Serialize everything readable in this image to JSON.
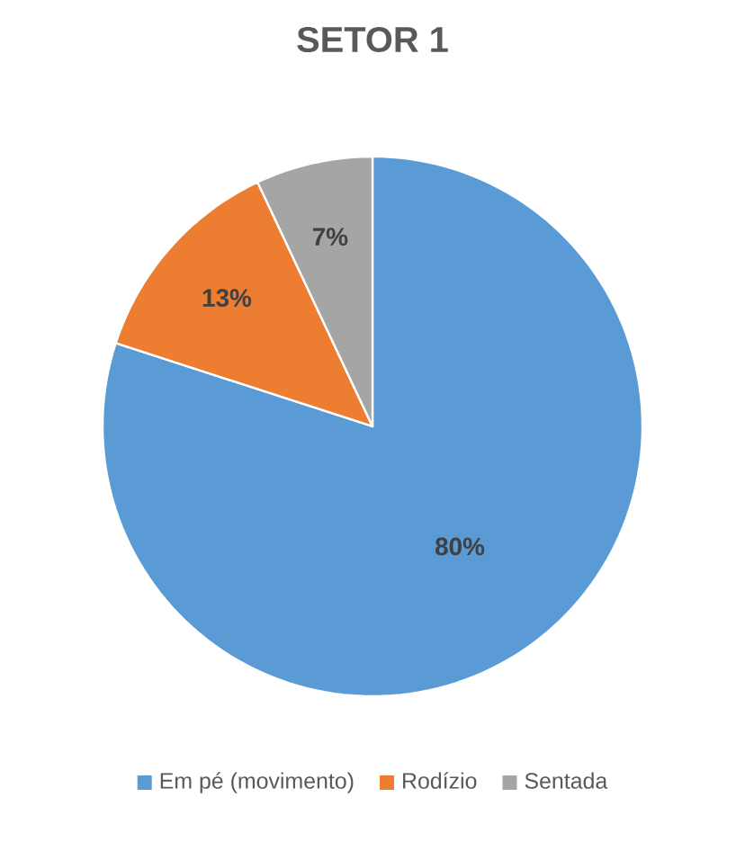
{
  "chart_data": {
    "type": "pie",
    "title": "SETOR 1",
    "categories": [
      "Em pé (movimento)",
      "Rodízio",
      "Sentada"
    ],
    "values": [
      80,
      13,
      7
    ],
    "colors": [
      "#5b9bd5",
      "#ed7d31",
      "#a5a5a5"
    ],
    "value_labels": [
      "80%",
      "13%",
      "7%"
    ],
    "legend": "bottom"
  }
}
